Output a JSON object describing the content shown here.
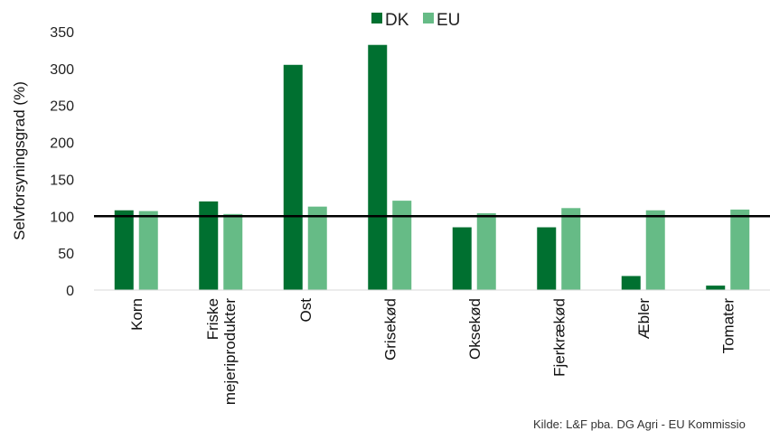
{
  "chart_data": {
    "type": "bar",
    "categories": [
      "Korn",
      "Friske mejeriprodukter",
      "Ost",
      "Grisekød",
      "Oksekød",
      "Fjerkrækød",
      "Æbler",
      "Tomater"
    ],
    "category_lines": [
      [
        "Korn"
      ],
      [
        "Friske",
        "mejeriprodukter"
      ],
      [
        "Ost"
      ],
      [
        "Grisekød"
      ],
      [
        "Oksekød"
      ],
      [
        "Fjerkrækød"
      ],
      [
        "Æbler"
      ],
      [
        "Tomater"
      ]
    ],
    "series": [
      {
        "name": "DK",
        "color": "#007030",
        "values": [
          108,
          120,
          305,
          332,
          85,
          85,
          19,
          6
        ]
      },
      {
        "name": "EU",
        "color": "#66BB86",
        "values": [
          107,
          103,
          113,
          121,
          104,
          111,
          108,
          109
        ]
      }
    ],
    "ylabel": "Selvforsyningsgrad (%)",
    "xlabel": "",
    "ylim": [
      0,
      350
    ],
    "yticks": [
      0,
      50,
      100,
      150,
      200,
      250,
      300,
      350
    ],
    "reference_line": 100,
    "grid": false,
    "legend_position": "top-center",
    "source": "Kilde: L&F pba. DG Agri - EU Kommissio"
  }
}
